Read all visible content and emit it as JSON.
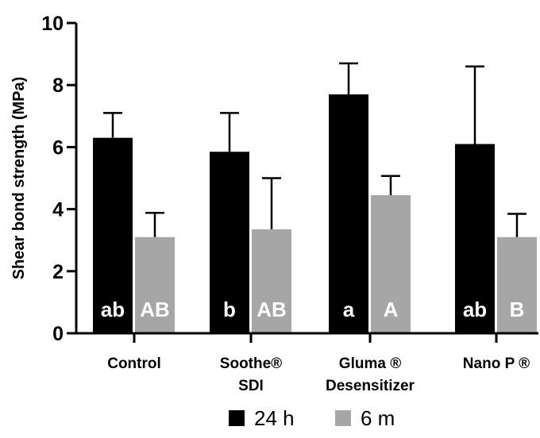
{
  "chart_data": {
    "type": "bar",
    "ylabel": "Shear bond strength (MPa)",
    "ylim": [
      0,
      10
    ],
    "yticks": [
      0,
      2,
      4,
      6,
      8,
      10
    ],
    "categories": [
      [
        "Control"
      ],
      [
        "Soothe®",
        "SDI"
      ],
      [
        "Gluma ®",
        "Desensitizer"
      ],
      [
        "Nano P ®"
      ]
    ],
    "series": [
      {
        "name": "24 h",
        "color": "#000000",
        "values": [
          6.3,
          5.85,
          7.7,
          6.1
        ],
        "error": [
          0.8,
          1.25,
          1.0,
          2.5
        ],
        "letters": [
          "ab",
          "b",
          "a",
          "ab"
        ]
      },
      {
        "name": "6 m",
        "color": "#a6a6a6",
        "values": [
          3.1,
          3.35,
          4.45,
          3.1
        ],
        "error": [
          0.78,
          1.65,
          0.62,
          0.75
        ],
        "letters": [
          "AB",
          "AB",
          "A",
          "B"
        ]
      }
    ],
    "grid": false,
    "legend_position": "bottom"
  }
}
